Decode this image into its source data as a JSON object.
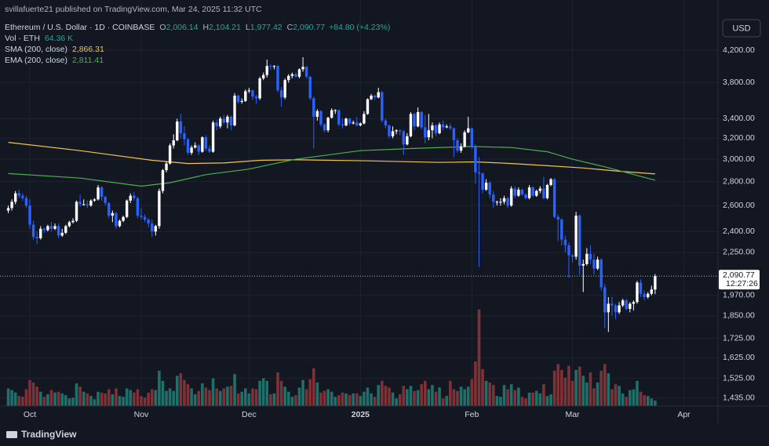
{
  "chart_data": {
    "type": "candlestick",
    "published": "svillafuerte21 published on TradingView.com, Mar 24, 2025 11:32 UTC",
    "title": "Ethereum / U.S. Dollar · 1D · COINBASE",
    "currency": "USD",
    "header_fields": [
      {
        "key": "O",
        "value": 2006.14,
        "label": "2,006.14"
      },
      {
        "key": "H",
        "value": 2104.21,
        "label": "2,104.21"
      },
      {
        "key": "L",
        "value": 1977.42,
        "label": "1,977.42"
      },
      {
        "key": "C",
        "value": 2090.77,
        "label": "2,090.77"
      }
    ],
    "change": {
      "value": 84.8,
      "label": "+84.80 (+4.23%)"
    },
    "log_scale": true,
    "grid": true,
    "up_color": "#ffffff",
    "down_color": "#2962ff",
    "ohlc": [
      [
        2560,
        2600,
        2540,
        2580
      ],
      [
        2580,
        2650,
        2560,
        2630
      ],
      [
        2630,
        2720,
        2610,
        2700
      ],
      [
        2700,
        2730,
        2660,
        2680
      ],
      [
        2680,
        2700,
        2640,
        2660
      ],
      [
        2660,
        2680,
        2580,
        2600
      ],
      [
        2600,
        2650,
        2420,
        2450
      ],
      [
        2450,
        2480,
        2340,
        2360
      ],
      [
        2360,
        2400,
        2310,
        2350
      ],
      [
        2350,
        2440,
        2340,
        2420
      ],
      [
        2420,
        2430,
        2390,
        2410
      ],
      [
        2410,
        2450,
        2400,
        2440
      ],
      [
        2440,
        2470,
        2400,
        2420
      ],
      [
        2420,
        2460,
        2410,
        2440
      ],
      [
        2440,
        2460,
        2350,
        2370
      ],
      [
        2370,
        2420,
        2360,
        2390
      ],
      [
        2390,
        2450,
        2380,
        2440
      ],
      [
        2440,
        2480,
        2430,
        2470
      ],
      [
        2470,
        2500,
        2460,
        2480
      ],
      [
        2480,
        2640,
        2470,
        2630
      ],
      [
        2630,
        2690,
        2590,
        2610
      ],
      [
        2610,
        2650,
        2600,
        2610
      ],
      [
        2610,
        2640,
        2580,
        2600
      ],
      [
        2600,
        2650,
        2590,
        2640
      ],
      [
        2640,
        2660,
        2630,
        2650
      ],
      [
        2650,
        2770,
        2640,
        2750
      ],
      [
        2750,
        2760,
        2640,
        2670
      ],
      [
        2670,
        2680,
        2600,
        2620
      ],
      [
        2620,
        2630,
        2500,
        2520
      ],
      [
        2520,
        2560,
        2470,
        2540
      ],
      [
        2540,
        2550,
        2420,
        2440
      ],
      [
        2440,
        2490,
        2430,
        2480
      ],
      [
        2480,
        2520,
        2470,
        2510
      ],
      [
        2510,
        2650,
        2500,
        2640
      ],
      [
        2640,
        2700,
        2620,
        2680
      ],
      [
        2680,
        2710,
        2640,
        2660
      ],
      [
        2660,
        2670,
        2500,
        2520
      ],
      [
        2520,
        2580,
        2490,
        2510
      ],
      [
        2510,
        2530,
        2470,
        2490
      ],
      [
        2490,
        2500,
        2430,
        2460
      ],
      [
        2460,
        2490,
        2360,
        2400
      ],
      [
        2400,
        2450,
        2370,
        2440
      ],
      [
        2440,
        2740,
        2420,
        2720
      ],
      [
        2720,
        2910,
        2700,
        2900
      ],
      [
        2900,
        2980,
        2880,
        2960
      ],
      [
        2960,
        3150,
        2950,
        3130
      ],
      [
        3130,
        3240,
        3100,
        3180
      ],
      [
        3180,
        3400,
        3170,
        3370
      ],
      [
        3370,
        3450,
        3200,
        3250
      ],
      [
        3250,
        3320,
        3130,
        3190
      ],
      [
        3190,
        3200,
        3040,
        3060
      ],
      [
        3060,
        3130,
        3040,
        3110
      ],
      [
        3110,
        3160,
        3100,
        3130
      ],
      [
        3130,
        3140,
        3040,
        3070
      ],
      [
        3070,
        3220,
        3060,
        3210
      ],
      [
        3210,
        3230,
        3080,
        3100
      ],
      [
        3100,
        3130,
        3060,
        3070
      ],
      [
        3070,
        3380,
        3060,
        3360
      ],
      [
        3360,
        3390,
        3280,
        3320
      ],
      [
        3320,
        3420,
        3300,
        3400
      ],
      [
        3400,
        3440,
        3340,
        3360
      ],
      [
        3360,
        3440,
        3300,
        3420
      ],
      [
        3420,
        3430,
        3280,
        3330
      ],
      [
        3330,
        3680,
        3320,
        3650
      ],
      [
        3650,
        3660,
        3560,
        3580
      ],
      [
        3580,
        3620,
        3560,
        3590
      ],
      [
        3590,
        3720,
        3580,
        3700
      ],
      [
        3700,
        3740,
        3680,
        3710
      ],
      [
        3710,
        3720,
        3600,
        3640
      ],
      [
        3640,
        3660,
        3560,
        3620
      ],
      [
        3620,
        3870,
        3600,
        3850
      ],
      [
        3850,
        3920,
        3830,
        3890
      ],
      [
        3890,
        4080,
        3860,
        4000
      ],
      [
        4000,
        4020,
        3950,
        3990
      ],
      [
        3990,
        4010,
        3960,
        4000
      ],
      [
        4000,
        4010,
        3690,
        3710
      ],
      [
        3710,
        3750,
        3530,
        3630
      ],
      [
        3630,
        3850,
        3610,
        3830
      ],
      [
        3830,
        3900,
        3800,
        3880
      ],
      [
        3880,
        3920,
        3850,
        3900
      ],
      [
        3900,
        3920,
        3860,
        3870
      ],
      [
        3870,
        3970,
        3850,
        3960
      ],
      [
        3960,
        4110,
        3930,
        3990
      ],
      [
        3990,
        4000,
        3850,
        3870
      ],
      [
        3870,
        3880,
        3600,
        3620
      ],
      [
        3620,
        3640,
        3100,
        3420
      ],
      [
        3420,
        3500,
        3380,
        3480
      ],
      [
        3480,
        3490,
        3320,
        3340
      ],
      [
        3340,
        3350,
        3260,
        3280
      ],
      [
        3280,
        3420,
        3260,
        3410
      ],
      [
        3410,
        3510,
        3400,
        3490
      ],
      [
        3490,
        3500,
        3450,
        3490
      ],
      [
        3490,
        3500,
        3320,
        3340
      ],
      [
        3340,
        3400,
        3300,
        3330
      ],
      [
        3330,
        3410,
        3320,
        3400
      ],
      [
        3400,
        3410,
        3330,
        3350
      ],
      [
        3350,
        3380,
        3340,
        3360
      ],
      [
        3360,
        3420,
        3320,
        3330
      ],
      [
        3330,
        3360,
        3320,
        3350
      ],
      [
        3350,
        3480,
        3340,
        3450
      ],
      [
        3450,
        3620,
        3440,
        3610
      ],
      [
        3610,
        3670,
        3600,
        3650
      ],
      [
        3650,
        3660,
        3600,
        3630
      ],
      [
        3630,
        3740,
        3620,
        3690
      ],
      [
        3690,
        3700,
        3360,
        3380
      ],
      [
        3380,
        3400,
        3300,
        3330
      ],
      [
        3330,
        3340,
        3200,
        3220
      ],
      [
        3220,
        3320,
        3200,
        3270
      ],
      [
        3270,
        3290,
        3240,
        3280
      ],
      [
        3280,
        3290,
        3230,
        3270
      ],
      [
        3270,
        3280,
        3040,
        3140
      ],
      [
        3140,
        3250,
        3130,
        3220
      ],
      [
        3220,
        3470,
        3210,
        3450
      ],
      [
        3450,
        3460,
        3280,
        3320
      ],
      [
        3320,
        3520,
        3310,
        3470
      ],
      [
        3470,
        3480,
        3290,
        3310
      ],
      [
        3310,
        3440,
        3150,
        3210
      ],
      [
        3210,
        3450,
        3180,
        3280
      ],
      [
        3280,
        3360,
        3200,
        3330
      ],
      [
        3330,
        3340,
        3220,
        3250
      ],
      [
        3250,
        3360,
        3240,
        3340
      ],
      [
        3340,
        3380,
        3280,
        3310
      ],
      [
        3310,
        3340,
        3300,
        3320
      ],
      [
        3320,
        3350,
        3280,
        3300
      ],
      [
        3300,
        3310,
        3020,
        3180
      ],
      [
        3180,
        3200,
        3060,
        3080
      ],
      [
        3080,
        3150,
        3060,
        3120
      ],
      [
        3120,
        3280,
        3110,
        3260
      ],
      [
        3260,
        3420,
        3250,
        3300
      ],
      [
        3300,
        3310,
        3100,
        3120
      ],
      [
        3120,
        3140,
        2780,
        2880
      ],
      [
        2880,
        3020,
        2150,
        2870
      ],
      [
        2870,
        2880,
        2700,
        2730
      ],
      [
        2730,
        2820,
        2720,
        2790
      ],
      [
        2790,
        2800,
        2660,
        2690
      ],
      [
        2690,
        2720,
        2580,
        2630
      ],
      [
        2630,
        2640,
        2600,
        2630
      ],
      [
        2630,
        2660,
        2600,
        2630
      ],
      [
        2630,
        2680,
        2610,
        2660
      ],
      [
        2660,
        2670,
        2580,
        2600
      ],
      [
        2600,
        2760,
        2590,
        2740
      ],
      [
        2740,
        2760,
        2660,
        2680
      ],
      [
        2680,
        2750,
        2670,
        2730
      ],
      [
        2730,
        2740,
        2680,
        2690
      ],
      [
        2690,
        2700,
        2650,
        2660
      ],
      [
        2660,
        2770,
        2650,
        2750
      ],
      [
        2750,
        2760,
        2670,
        2680
      ],
      [
        2680,
        2730,
        2670,
        2720
      ],
      [
        2720,
        2760,
        2700,
        2740
      ],
      [
        2740,
        2840,
        2650,
        2660
      ],
      [
        2660,
        2780,
        2650,
        2770
      ],
      [
        2770,
        2830,
        2760,
        2820
      ],
      [
        2820,
        2830,
        2500,
        2510
      ],
      [
        2510,
        2530,
        2330,
        2490
      ],
      [
        2490,
        2500,
        2300,
        2340
      ],
      [
        2340,
        2370,
        2250,
        2300
      ],
      [
        2300,
        2320,
        2080,
        2230
      ],
      [
        2230,
        2240,
        2180,
        2220
      ],
      [
        2220,
        2550,
        2200,
        2520
      ],
      [
        2520,
        2530,
        2100,
        2160
      ],
      [
        2160,
        2200,
        1990,
        2170
      ],
      [
        2170,
        2280,
        2160,
        2240
      ],
      [
        2240,
        2300,
        2170,
        2200
      ],
      [
        2200,
        2240,
        2100,
        2140
      ],
      [
        2140,
        2220,
        2130,
        2200
      ],
      [
        2200,
        2210,
        2000,
        2020
      ],
      [
        2020,
        2040,
        1780,
        1870
      ],
      [
        1870,
        1960,
        1760,
        1920
      ],
      [
        1920,
        1960,
        1850,
        1910
      ],
      [
        1910,
        1920,
        1830,
        1870
      ],
      [
        1870,
        1930,
        1860,
        1910
      ],
      [
        1910,
        1950,
        1900,
        1940
      ],
      [
        1940,
        1950,
        1880,
        1890
      ],
      [
        1890,
        1930,
        1870,
        1920
      ],
      [
        1920,
        1940,
        1880,
        1930
      ],
      [
        1930,
        2060,
        1920,
        2050
      ],
      [
        2050,
        2070,
        1960,
        1980
      ],
      [
        1980,
        2000,
        1940,
        1960
      ],
      [
        1960,
        1990,
        1950,
        1980
      ],
      [
        1980,
        2030,
        1970,
        2006.14
      ],
      [
        2006.14,
        2104.21,
        1977.42,
        2090.77
      ]
    ],
    "volume": {
      "name": "Vol · ETH",
      "legend_value": {
        "value": 64.36,
        "label": "64.36 K"
      },
      "up_color": "#1f6f6a",
      "down_color": "#7e3236",
      "ylim": [
        0,
        1400
      ],
      "values": [
        210,
        190,
        160,
        120,
        110,
        200,
        310,
        280,
        230,
        170,
        110,
        140,
        190,
        160,
        170,
        150,
        130,
        90,
        100,
        270,
        230,
        170,
        150,
        120,
        80,
        170,
        160,
        150,
        200,
        140,
        210,
        120,
        110,
        210,
        190,
        160,
        200,
        120,
        100,
        160,
        200,
        190,
        420,
        300,
        180,
        210,
        180,
        360,
        390,
        310,
        260,
        210,
        140,
        180,
        270,
        220,
        190,
        330,
        210,
        180,
        210,
        230,
        240,
        380,
        150,
        170,
        210,
        150,
        210,
        200,
        300,
        330,
        300,
        140,
        150,
        400,
        300,
        230,
        170,
        110,
        130,
        220,
        310,
        200,
        320,
        450,
        280,
        160,
        180,
        200,
        170,
        110,
        130,
        160,
        150,
        130,
        150,
        150,
        120,
        170,
        220,
        150,
        110,
        250,
        300,
        240,
        220,
        160,
        90,
        140,
        240,
        200,
        240,
        180,
        190,
        260,
        300,
        200,
        250,
        170,
        220,
        90,
        120,
        300,
        200,
        180,
        230,
        200,
        230,
        320,
        530,
        1150,
        440,
        300,
        280,
        250,
        120,
        110,
        250,
        200,
        260,
        190,
        220,
        110,
        90,
        160,
        160,
        180,
        150,
        260,
        120,
        140,
        420,
        500,
        430,
        340,
        480,
        300,
        430,
        470,
        360,
        280,
        400,
        210,
        280,
        420,
        500,
        390,
        200,
        260,
        240,
        150,
        110,
        190,
        200,
        300,
        170,
        130,
        120,
        90,
        64.36
      ]
    },
    "series": [
      {
        "name": "SMA (200, close)",
        "color": "#f2c744",
        "legend_value": {
          "value": 2866.31,
          "label": "2,866.31"
        },
        "x": [
          0,
          20,
          40,
          50,
          60,
          70,
          80,
          100,
          120,
          130,
          140,
          150,
          160,
          170,
          180
        ],
        "values": [
          3160,
          3080,
          2990,
          2960,
          2965,
          2990,
          2995,
          2985,
          2970,
          2975,
          2960,
          2940,
          2920,
          2890,
          2866.31
        ]
      },
      {
        "name": "EMA (200, close)",
        "color": "#4caf50",
        "legend_value": {
          "value": 2811.41,
          "label": "2,811.41"
        },
        "x": [
          0,
          20,
          37,
          45,
          55,
          67,
          80,
          98,
          112,
          129,
          140,
          150,
          157,
          166,
          180
        ],
        "values": [
          2870,
          2830,
          2760,
          2790,
          2860,
          2910,
          3000,
          3080,
          3100,
          3120,
          3110,
          3070,
          3000,
          2930,
          2811.41
        ]
      }
    ],
    "last_price": {
      "value": 2090.77,
      "label": "2,090.77"
    },
    "countdown": "12:27:26",
    "xlim": [
      -2.3,
      197.5
    ],
    "xticks": [
      {
        "value": 6,
        "label": "Oct"
      },
      {
        "value": 37,
        "label": "Nov"
      },
      {
        "value": 67,
        "label": "Dec"
      },
      {
        "value": 98,
        "label": "2025"
      },
      {
        "value": 129,
        "label": "Feb"
      },
      {
        "value": 157,
        "label": "Mar"
      },
      {
        "value": 188,
        "label": "Apr"
      }
    ],
    "ylim": [
      1400,
      4650
    ],
    "yticks": [
      {
        "value": 4200,
        "label": "4,200.00"
      },
      {
        "value": 3800,
        "label": "3,800.00"
      },
      {
        "value": 3400,
        "label": "3,400.00"
      },
      {
        "value": 3200,
        "label": "3,200.00"
      },
      {
        "value": 3000,
        "label": "3,000.00"
      },
      {
        "value": 2800,
        "label": "2,800.00"
      },
      {
        "value": 2600,
        "label": "2,600.00"
      },
      {
        "value": 2400,
        "label": "2,400.00"
      },
      {
        "value": 2250,
        "label": "2,250.00"
      },
      {
        "value": 1970,
        "label": "1,970.00"
      },
      {
        "value": 1850,
        "label": "1,850.00"
      },
      {
        "value": 1725,
        "label": "1,725.00"
      },
      {
        "value": 1625,
        "label": "1,625.00"
      },
      {
        "value": 1525,
        "label": "1,525.00"
      },
      {
        "value": 1435,
        "label": "1,435.00"
      }
    ],
    "brand": "TradingView"
  }
}
